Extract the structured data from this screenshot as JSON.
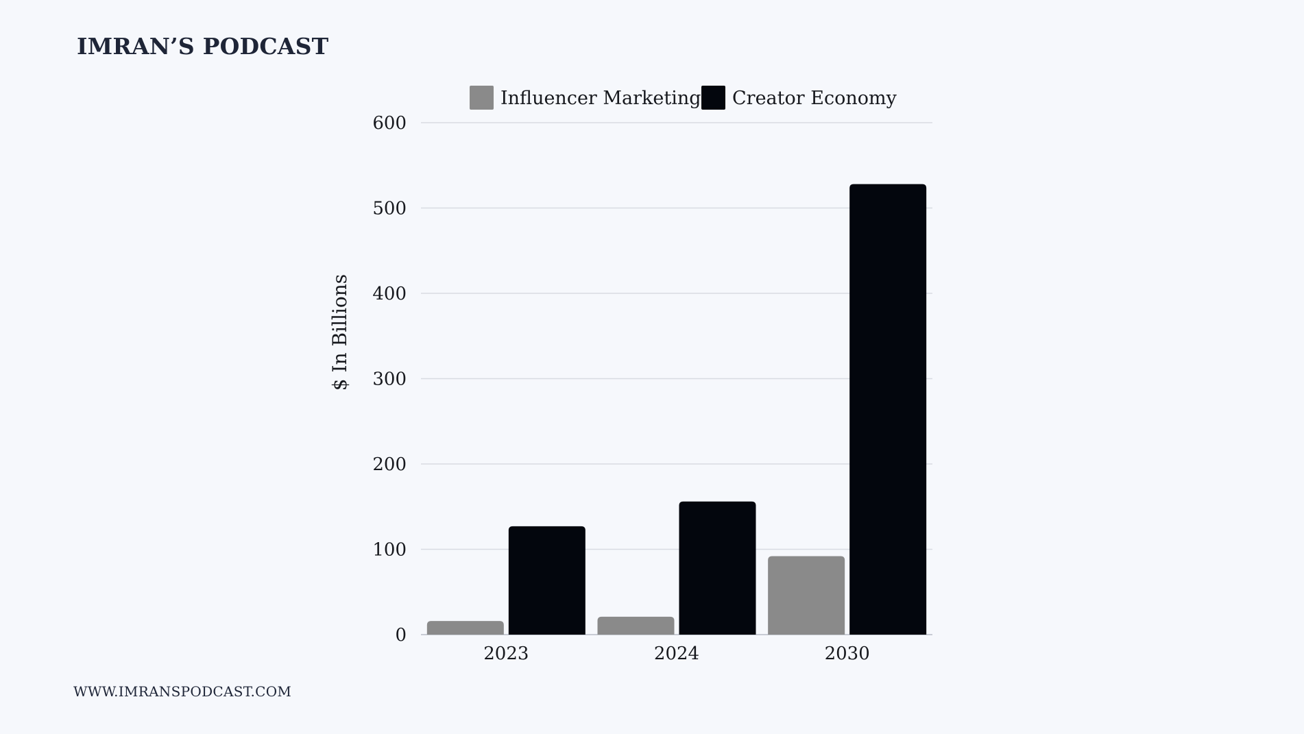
{
  "header": {
    "title": "IMRAN’S PODCAST"
  },
  "footer": {
    "website": "WWW.IMRANSPODCAST.COM"
  },
  "colors": {
    "background": "#f6f8fc",
    "gridline": "#d8dbe2",
    "influencer": "#8a8a8a",
    "creator": "#03060d"
  },
  "chart_data": {
    "type": "bar",
    "categories": [
      "2023",
      "2024",
      "2030"
    ],
    "series": [
      {
        "name": "Influencer Marketing",
        "values": [
          16,
          21,
          92
        ],
        "color": "#8a8a8a"
      },
      {
        "name": "Creator Economy",
        "values": [
          127,
          156,
          528
        ],
        "color": "#03060d"
      }
    ],
    "ylabel": "$ In Billions",
    "xlabel": "",
    "ylim": [
      0,
      600
    ],
    "yticks": [
      0,
      100,
      200,
      300,
      400,
      500,
      600
    ],
    "grid": true,
    "legend": "top-center"
  }
}
